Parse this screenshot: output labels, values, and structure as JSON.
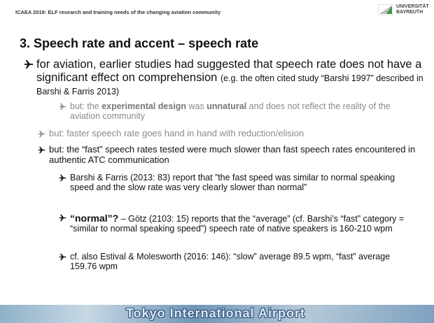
{
  "header": {
    "conference": "ICAEA 2019: ELF research and training needs of the changing aviation community",
    "logo": [
      "UNIVERSITÄT",
      "BAYREUTH"
    ]
  },
  "title": "3. Speech rate and accent – speech rate",
  "bullets": [
    {
      "runs": [
        "for aviation, earlier studies had suggested that speech rate does not have a significant effect on comprehension ",
        "(e.g. the often cited study “Barshi 1997” described in Barshi & Farris 2013)"
      ]
    },
    {
      "runs": [
        "but: the ",
        "experimental design",
        " was ",
        "unnatural",
        " and does not reflect the reality of the aviation community"
      ]
    },
    {
      "runs": [
        "but: faster speech rate goes hand in hand with reduction/elision"
      ]
    },
    {
      "runs": [
        "but: the “fast” speech rates tested were much slower than fast speech rates encountered in authentic ATC communication"
      ]
    },
    {
      "runs": [
        "Barshi & Farris (2013: 83) report that ”the fast speed was similar to normal speaking speed and the slow rate was very clearly slower than normal”"
      ]
    },
    {
      "runs": [
        "“normal”?",
        " – Götz (2103: 15) reports that the “average” (cf. Barshi’s “fast” category = “similar to normal speaking speed”) speech rate of  native speakers is 160-210 wpm"
      ]
    },
    {
      "runs": [
        "cf. also  Estival & Molesworth (2016: 146): “slow” average 89.5 wpm, “fast” average 159.76 wpm"
      ]
    }
  ],
  "footer": {
    "banner": "Tokyo International Airport"
  }
}
